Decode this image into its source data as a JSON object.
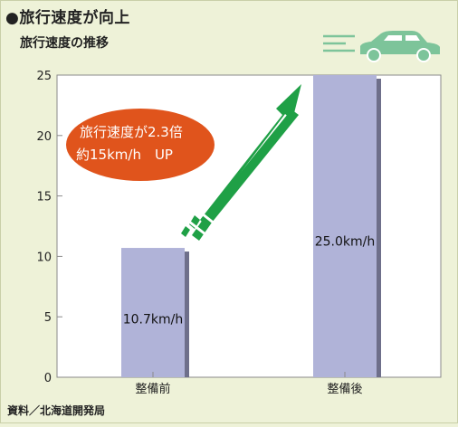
{
  "header": {
    "title": "●旅行速度が向上",
    "subtitle": "旅行速度の推移"
  },
  "footer": {
    "source": "資料／北海道開発局"
  },
  "annotation": {
    "line1": "旅行速度が2.3倍",
    "line2": "約15km/h　UP",
    "color": "#e0541c"
  },
  "icons": [
    "car-icon",
    "speed-lines-icon",
    "arrow-up-right-icon"
  ],
  "colors": {
    "bar": "#b0b3d8",
    "bar_shadow": "#6e6f8a",
    "arrow": "#1fa046",
    "car": "#7dc49a",
    "plot_bg": "#ffffff"
  },
  "chart_data": {
    "type": "bar",
    "title": "",
    "xlabel": "",
    "ylabel": "",
    "categories": [
      "整備前",
      "整備後"
    ],
    "values": [
      10.7,
      25.0
    ],
    "data_labels": [
      "10.7km/h",
      "25.0km/h"
    ],
    "ylim": [
      0,
      25
    ],
    "yticks": [
      "0",
      "5",
      "10",
      "15",
      "20",
      "25"
    ],
    "grid": false,
    "legend": "none"
  }
}
